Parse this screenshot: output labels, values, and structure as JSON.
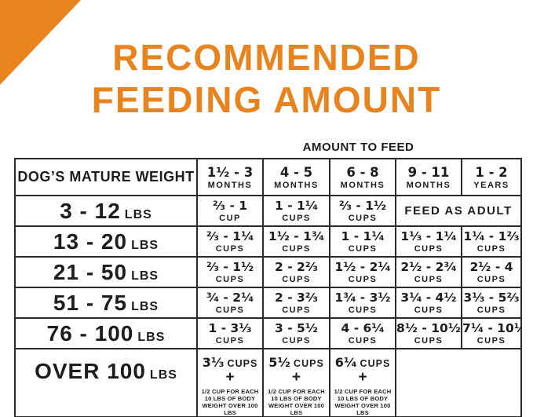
{
  "page": {
    "background": "#ffffff",
    "accent_color": "#E8831E",
    "text_color": "#1d1d1b",
    "border_color": "#2b2b2b"
  },
  "title": {
    "line1": "RECOMMENDED",
    "line2": "FEEDING AMOUNT"
  },
  "table": {
    "caption": "AMOUNT TO FEED",
    "corner_header": "DOG’S MATURE WEIGHT",
    "age_columns": [
      {
        "range": "1¹⁄₂ - 3",
        "unit": "MONTHS"
      },
      {
        "range": "4 - 5",
        "unit": "MONTHS"
      },
      {
        "range": "6 - 8",
        "unit": "MONTHS"
      },
      {
        "range": "9 - 11",
        "unit": "MONTHS"
      },
      {
        "range": "1 - 2",
        "unit": "YEARS"
      }
    ],
    "rows": [
      {
        "weight": "3 - 12",
        "unit": "LBS",
        "cells": [
          {
            "amount": "²⁄₃ - 1",
            "unit": "CUP"
          },
          {
            "amount": "1 - 1¹⁄₄",
            "unit": "CUPS"
          },
          {
            "amount": "²⁄₃ - 1¹⁄₂",
            "unit": "CUPS"
          },
          {
            "amount": "FEED AS ADULT",
            "colspan": 2,
            "merged": true
          }
        ]
      },
      {
        "weight": "13 - 20",
        "unit": "LBS",
        "cells": [
          {
            "amount": "²⁄₃ - 1¹⁄₄",
            "unit": "CUPS"
          },
          {
            "amount": "1¹⁄₂ - 1³⁄₄",
            "unit": "CUPS"
          },
          {
            "amount": "1 - 1¹⁄₄",
            "unit": "CUPS"
          },
          {
            "amount": "1¹⁄₃ - 1¹⁄₄",
            "unit": "CUPS"
          },
          {
            "amount": "1¹⁄₄ - 1²⁄₃",
            "unit": "CUPS"
          }
        ]
      },
      {
        "weight": "21 - 50",
        "unit": "LBS",
        "cells": [
          {
            "amount": "²⁄₃ - 1¹⁄₂",
            "unit": "CUPS"
          },
          {
            "amount": "2 - 2²⁄₃",
            "unit": "CUPS"
          },
          {
            "amount": "1¹⁄₂ - 2¹⁄₄",
            "unit": "CUPS"
          },
          {
            "amount": "2¹⁄₂ - 2³⁄₄",
            "unit": "CUPS"
          },
          {
            "amount": "2¹⁄₂ - 4",
            "unit": "CUPS"
          }
        ]
      },
      {
        "weight": "51 - 75",
        "unit": "LBS",
        "cells": [
          {
            "amount": "³⁄₄ - 2¹⁄₄",
            "unit": "CUPS"
          },
          {
            "amount": "2 - 3²⁄₃",
            "unit": "CUPS"
          },
          {
            "amount": "1³⁄₄ - 3¹⁄₂",
            "unit": "CUPS"
          },
          {
            "amount": "3¹⁄₄ - 4¹⁄₂",
            "unit": "CUPS"
          },
          {
            "amount": "3¹⁄₃ - 5²⁄₃",
            "unit": "CUPS"
          }
        ]
      },
      {
        "weight": "76 - 100",
        "unit": "LBS",
        "cells": [
          {
            "amount": "1 - 3¹⁄₃",
            "unit": "CUPS"
          },
          {
            "amount": "3 - 5¹⁄₂",
            "unit": "CUPS"
          },
          {
            "amount": "4 - 6¹⁄₄",
            "unit": "CUPS"
          },
          {
            "amount": "8¹⁄₂ - 10¹⁄₂",
            "unit": "CUPS"
          },
          {
            "amount": "7¹⁄₄ - 10¹⁄₄",
            "unit": "CUPS"
          }
        ]
      },
      {
        "weight": "OVER 100",
        "unit": "LBS",
        "cells": [
          {
            "amount": "3¹⁄₃",
            "unit": "CUPS",
            "plus": "+",
            "note": [
              "1/2 CUP FOR EACH",
              "10 LBS OF BODY",
              "WEIGHT OVER 100 LBS"
            ]
          },
          {
            "amount": "5¹⁄₂",
            "unit": "CUPS",
            "plus": "+",
            "note": [
              "1/2 CUP FOR EACH",
              "10 LBS OF BODY",
              "WEIGHT OVER 100 LBS"
            ]
          },
          {
            "amount": "6¹⁄₄",
            "unit": "CUPS",
            "plus": "+",
            "note": [
              "1/2 CUP FOR EACH",
              "10 LBS OF BODY",
              "WEIGHT OVER 100 LBS"
            ]
          },
          {
            "amount": "",
            "colspan": 2,
            "merged": true
          }
        ]
      }
    ]
  },
  "chart_data": {
    "type": "table",
    "title": "RECOMMENDED FEEDING AMOUNT",
    "caption": "AMOUNT TO FEED",
    "columns": [
      "DOG'S MATURE WEIGHT",
      "1 1/2 - 3 MONTHS",
      "4 - 5 MONTHS",
      "6 - 8 MONTHS",
      "9 - 11 MONTHS",
      "1 - 2 YEARS"
    ],
    "rows": [
      [
        "3 - 12 LBS",
        "2/3 - 1 cup",
        "1 - 1 1/4 cups",
        "2/3 - 1 1/2 cups",
        "FEED AS ADULT",
        "FEED AS ADULT"
      ],
      [
        "13 - 20 LBS",
        "2/3 - 1 1/4 cups",
        "1 1/2 - 1 3/4 cups",
        "1 - 1 1/4 cups",
        "1 1/3 - 1 1/4 cups",
        "1 1/4 - 1 2/3 cups"
      ],
      [
        "21 - 50 LBS",
        "2/3 - 1 1/2 cups",
        "2 - 2 2/3 cups",
        "1 1/2 - 2 1/4 cups",
        "2 1/2 - 2 3/4 cups",
        "2 1/2 - 4 cups"
      ],
      [
        "51 - 75 LBS",
        "3/4 - 2 1/4 cups",
        "2 - 3 2/3 cups",
        "1 3/4 - 3 1/2 cups",
        "3 1/4 - 4 1/2 cups",
        "3 1/3 - 5 2/3 cups"
      ],
      [
        "76 - 100 LBS",
        "1 - 3 1/3 cups",
        "3 - 5 1/2 cups",
        "4 - 6 1/4 cups",
        "8 1/2 - 10 1/2 cups",
        "7 1/4 - 10 1/4 cups"
      ],
      [
        "OVER 100 LBS",
        "3 1/3 cups + 1/2 cup for each 10 lbs of body weight over 100 lbs",
        "5 1/2 cups + 1/2 cup for each 10 lbs of body weight over 100 lbs",
        "6 1/4 cups + 1/2 cup for each 10 lbs of body weight over 100 lbs",
        "",
        ""
      ]
    ]
  }
}
